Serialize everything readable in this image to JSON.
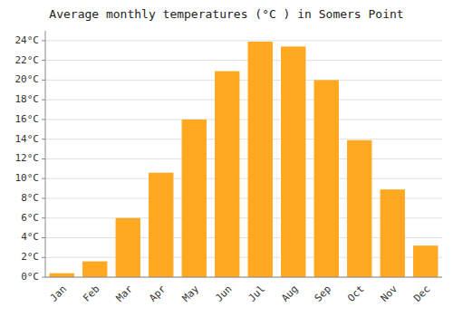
{
  "chart_data": {
    "type": "bar",
    "title": "Average monthly temperatures (°C ) in Somers Point",
    "categories": [
      "Jan",
      "Feb",
      "Mar",
      "Apr",
      "May",
      "Jun",
      "Jul",
      "Aug",
      "Sep",
      "Oct",
      "Nov",
      "Dec"
    ],
    "values": [
      0.4,
      1.6,
      6.0,
      10.6,
      16.0,
      20.9,
      23.9,
      23.4,
      20.0,
      13.9,
      8.9,
      3.2
    ],
    "color": "#FFA820",
    "ylim": [
      0,
      25
    ],
    "yticks": [
      {
        "value": 0,
        "label": "0°C"
      },
      {
        "value": 2,
        "label": "2°C"
      },
      {
        "value": 4,
        "label": "4°C"
      },
      {
        "value": 6,
        "label": "6°C"
      },
      {
        "value": 8,
        "label": "8°C"
      },
      {
        "value": 10,
        "label": "10°C"
      },
      {
        "value": 12,
        "label": "12°C"
      },
      {
        "value": 14,
        "label": "14°C"
      },
      {
        "value": 16,
        "label": "16°C"
      },
      {
        "value": 18,
        "label": "18°C"
      },
      {
        "value": 20,
        "label": "20°C"
      },
      {
        "value": 22,
        "label": "22°C"
      },
      {
        "value": 24,
        "label": "24°C"
      }
    ],
    "grid": true
  }
}
